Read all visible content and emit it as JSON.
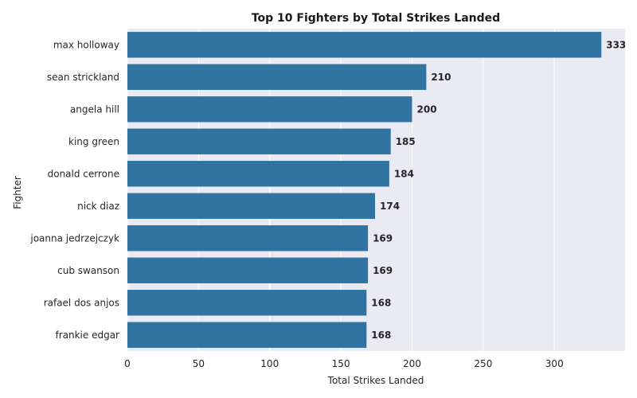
{
  "chart_data": {
    "type": "bar",
    "orientation": "horizontal",
    "title": "Top 10 Fighters by Total Strikes Landed",
    "xlabel": "Total Strikes Landed",
    "ylabel": "Fighter",
    "categories": [
      "max holloway",
      "sean strickland",
      "angela hill",
      "king green",
      "donald cerrone",
      "nick diaz",
      "joanna jedrzejczyk",
      "cub swanson",
      "rafael dos anjos",
      "frankie edgar"
    ],
    "values": [
      333,
      210,
      200,
      185,
      184,
      174,
      169,
      169,
      168,
      168
    ],
    "xlim": [
      0,
      349.65
    ],
    "xticks": [
      0,
      50,
      100,
      150,
      200,
      250,
      300
    ],
    "grid": true,
    "bar_color": "#3274a1",
    "background_color": "#eaeaf2",
    "grid_color": "#ffffff"
  }
}
